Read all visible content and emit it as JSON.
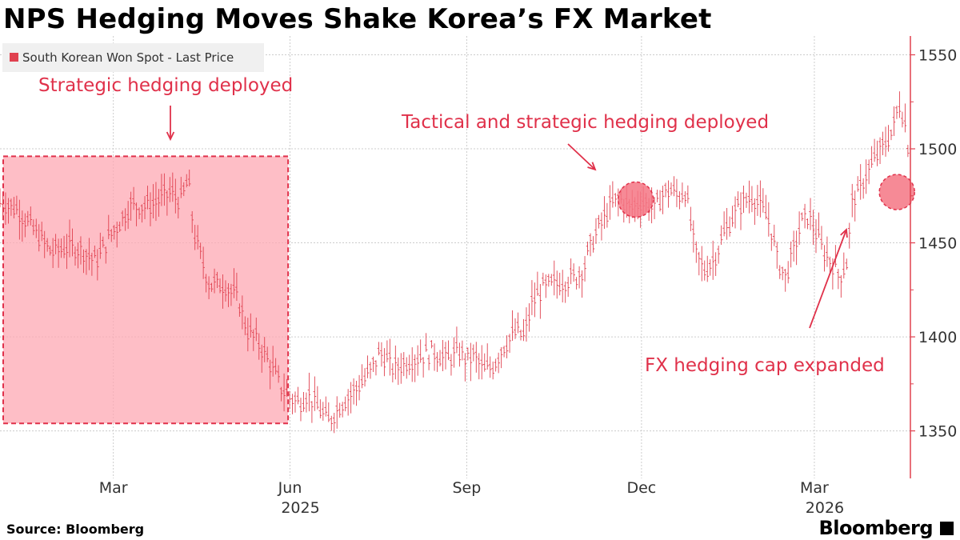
{
  "title": "NPS Hedging Moves Shake Korea’s FX Market",
  "source": "Source:  Bloomberg",
  "brand": "Bloomberg",
  "colors": {
    "series": "#e0414f",
    "annotation": "#e0314a",
    "shade_fill": "#fda8b3",
    "shade_border": "#e0314a",
    "grid": "#cccccc",
    "axis": "#e0414f"
  },
  "chart_data": {
    "type": "line",
    "title": "NPS Hedging Moves Shake Korea’s FX Market",
    "legend": {
      "label": "South Korean Won Spot - Last Price",
      "placement": "top-left"
    },
    "ylim": [
      1326,
      1560
    ],
    "yticks": [
      1350,
      1400,
      1450,
      1500,
      1550
    ],
    "xlim": [
      "2025-01-01",
      "2026-04-20"
    ],
    "xticks": [
      {
        "date": "2025-03-01",
        "label": "Mar",
        "year": ""
      },
      {
        "date": "2025-06-01",
        "label": "Jun",
        "year": "2025"
      },
      {
        "date": "2025-09-01",
        "label": "Sep",
        "year": ""
      },
      {
        "date": "2025-12-01",
        "label": "Dec",
        "year": ""
      },
      {
        "date": "2026-03-01",
        "label": "Mar",
        "year": "2026"
      }
    ],
    "series": [
      {
        "points": [
          [
            "2025-01-01",
            1472
          ],
          [
            "2025-01-10",
            1468
          ],
          [
            "2025-01-20",
            1455
          ],
          [
            "2025-01-28",
            1445
          ],
          [
            "2025-02-05",
            1448
          ],
          [
            "2025-02-12",
            1447
          ],
          [
            "2025-02-20",
            1440
          ],
          [
            "2025-02-28",
            1455
          ],
          [
            "2025-03-05",
            1462
          ],
          [
            "2025-03-10",
            1470
          ],
          [
            "2025-03-20",
            1470
          ],
          [
            "2025-03-31",
            1477
          ],
          [
            "2025-04-05",
            1472
          ],
          [
            "2025-04-09",
            1484
          ],
          [
            "2025-04-12",
            1455
          ],
          [
            "2025-04-20",
            1428
          ],
          [
            "2025-04-28",
            1428
          ],
          [
            "2025-05-05",
            1420
          ],
          [
            "2025-05-10",
            1403
          ],
          [
            "2025-05-15",
            1398
          ],
          [
            "2025-05-22",
            1385
          ],
          [
            "2025-05-28",
            1372
          ],
          [
            "2025-06-01",
            1368
          ],
          [
            "2025-06-06",
            1365
          ],
          [
            "2025-06-10",
            1370
          ],
          [
            "2025-06-16",
            1362
          ],
          [
            "2025-06-21",
            1355
          ],
          [
            "2025-06-28",
            1365
          ],
          [
            "2025-07-05",
            1372
          ],
          [
            "2025-07-12",
            1380
          ],
          [
            "2025-07-18",
            1392
          ],
          [
            "2025-07-25",
            1383
          ],
          [
            "2025-08-01",
            1387
          ],
          [
            "2025-08-08",
            1390
          ],
          [
            "2025-08-15",
            1392
          ],
          [
            "2025-08-22",
            1388
          ],
          [
            "2025-08-28",
            1392
          ],
          [
            "2025-09-01",
            1388
          ],
          [
            "2025-09-05",
            1390
          ],
          [
            "2025-09-10",
            1382
          ],
          [
            "2025-09-15",
            1385
          ],
          [
            "2025-09-20",
            1395
          ],
          [
            "2025-09-27",
            1403
          ],
          [
            "2025-10-01",
            1400
          ],
          [
            "2025-10-05",
            1418
          ],
          [
            "2025-10-10",
            1425
          ],
          [
            "2025-10-16",
            1428
          ],
          [
            "2025-10-22",
            1430
          ],
          [
            "2025-10-28",
            1432
          ],
          [
            "2025-11-01",
            1437
          ],
          [
            "2025-11-05",
            1450
          ],
          [
            "2025-11-10",
            1460
          ],
          [
            "2025-11-15",
            1470
          ],
          [
            "2025-11-20",
            1474
          ],
          [
            "2025-11-25",
            1468
          ],
          [
            "2025-11-30",
            1472
          ],
          [
            "2025-12-04",
            1471
          ],
          [
            "2025-12-08",
            1468
          ],
          [
            "2025-12-12",
            1476
          ],
          [
            "2025-12-16",
            1478
          ],
          [
            "2025-12-20",
            1475
          ],
          [
            "2025-12-24",
            1478
          ],
          [
            "2025-12-29",
            1445
          ],
          [
            "2026-01-03",
            1435
          ],
          [
            "2026-01-08",
            1442
          ],
          [
            "2026-01-13",
            1455
          ],
          [
            "2026-01-18",
            1465
          ],
          [
            "2026-01-23",
            1472
          ],
          [
            "2026-01-28",
            1475
          ],
          [
            "2026-02-02",
            1468
          ],
          [
            "2026-02-06",
            1460
          ],
          [
            "2026-02-10",
            1440
          ],
          [
            "2026-02-14",
            1432
          ],
          [
            "2026-02-18",
            1445
          ],
          [
            "2026-02-22",
            1460
          ],
          [
            "2026-02-26",
            1465
          ],
          [
            "2026-03-02",
            1455
          ],
          [
            "2026-03-06",
            1445
          ],
          [
            "2026-03-10",
            1440
          ],
          [
            "2026-03-14",
            1432
          ],
          [
            "2026-03-18",
            1440
          ],
          [
            "2026-03-21",
            1475
          ],
          [
            "2026-03-24",
            1475
          ],
          [
            "2026-03-27",
            1485
          ],
          [
            "2026-03-30",
            1490
          ],
          [
            "2026-04-02",
            1495
          ],
          [
            "2026-04-05",
            1500
          ],
          [
            "2026-04-08",
            1505
          ],
          [
            "2026-04-11",
            1510
          ],
          [
            "2026-04-14",
            1525
          ],
          [
            "2026-04-17",
            1515
          ],
          [
            "2026-04-19",
            1500
          ]
        ]
      }
    ],
    "annotations": [
      "Strategic hedging deployed",
      "Tactical and strategic hedging deployed",
      "FX hedging cap expanded"
    ],
    "shaded_region": {
      "x_start": "2025-01-01",
      "x_end": "2025-05-31",
      "y_start": 1354,
      "y_end": 1496
    },
    "highlights": [
      {
        "x": "2025-11-28",
        "y": 1473
      },
      {
        "x": "2026-04-13",
        "y": 1477
      }
    ]
  }
}
